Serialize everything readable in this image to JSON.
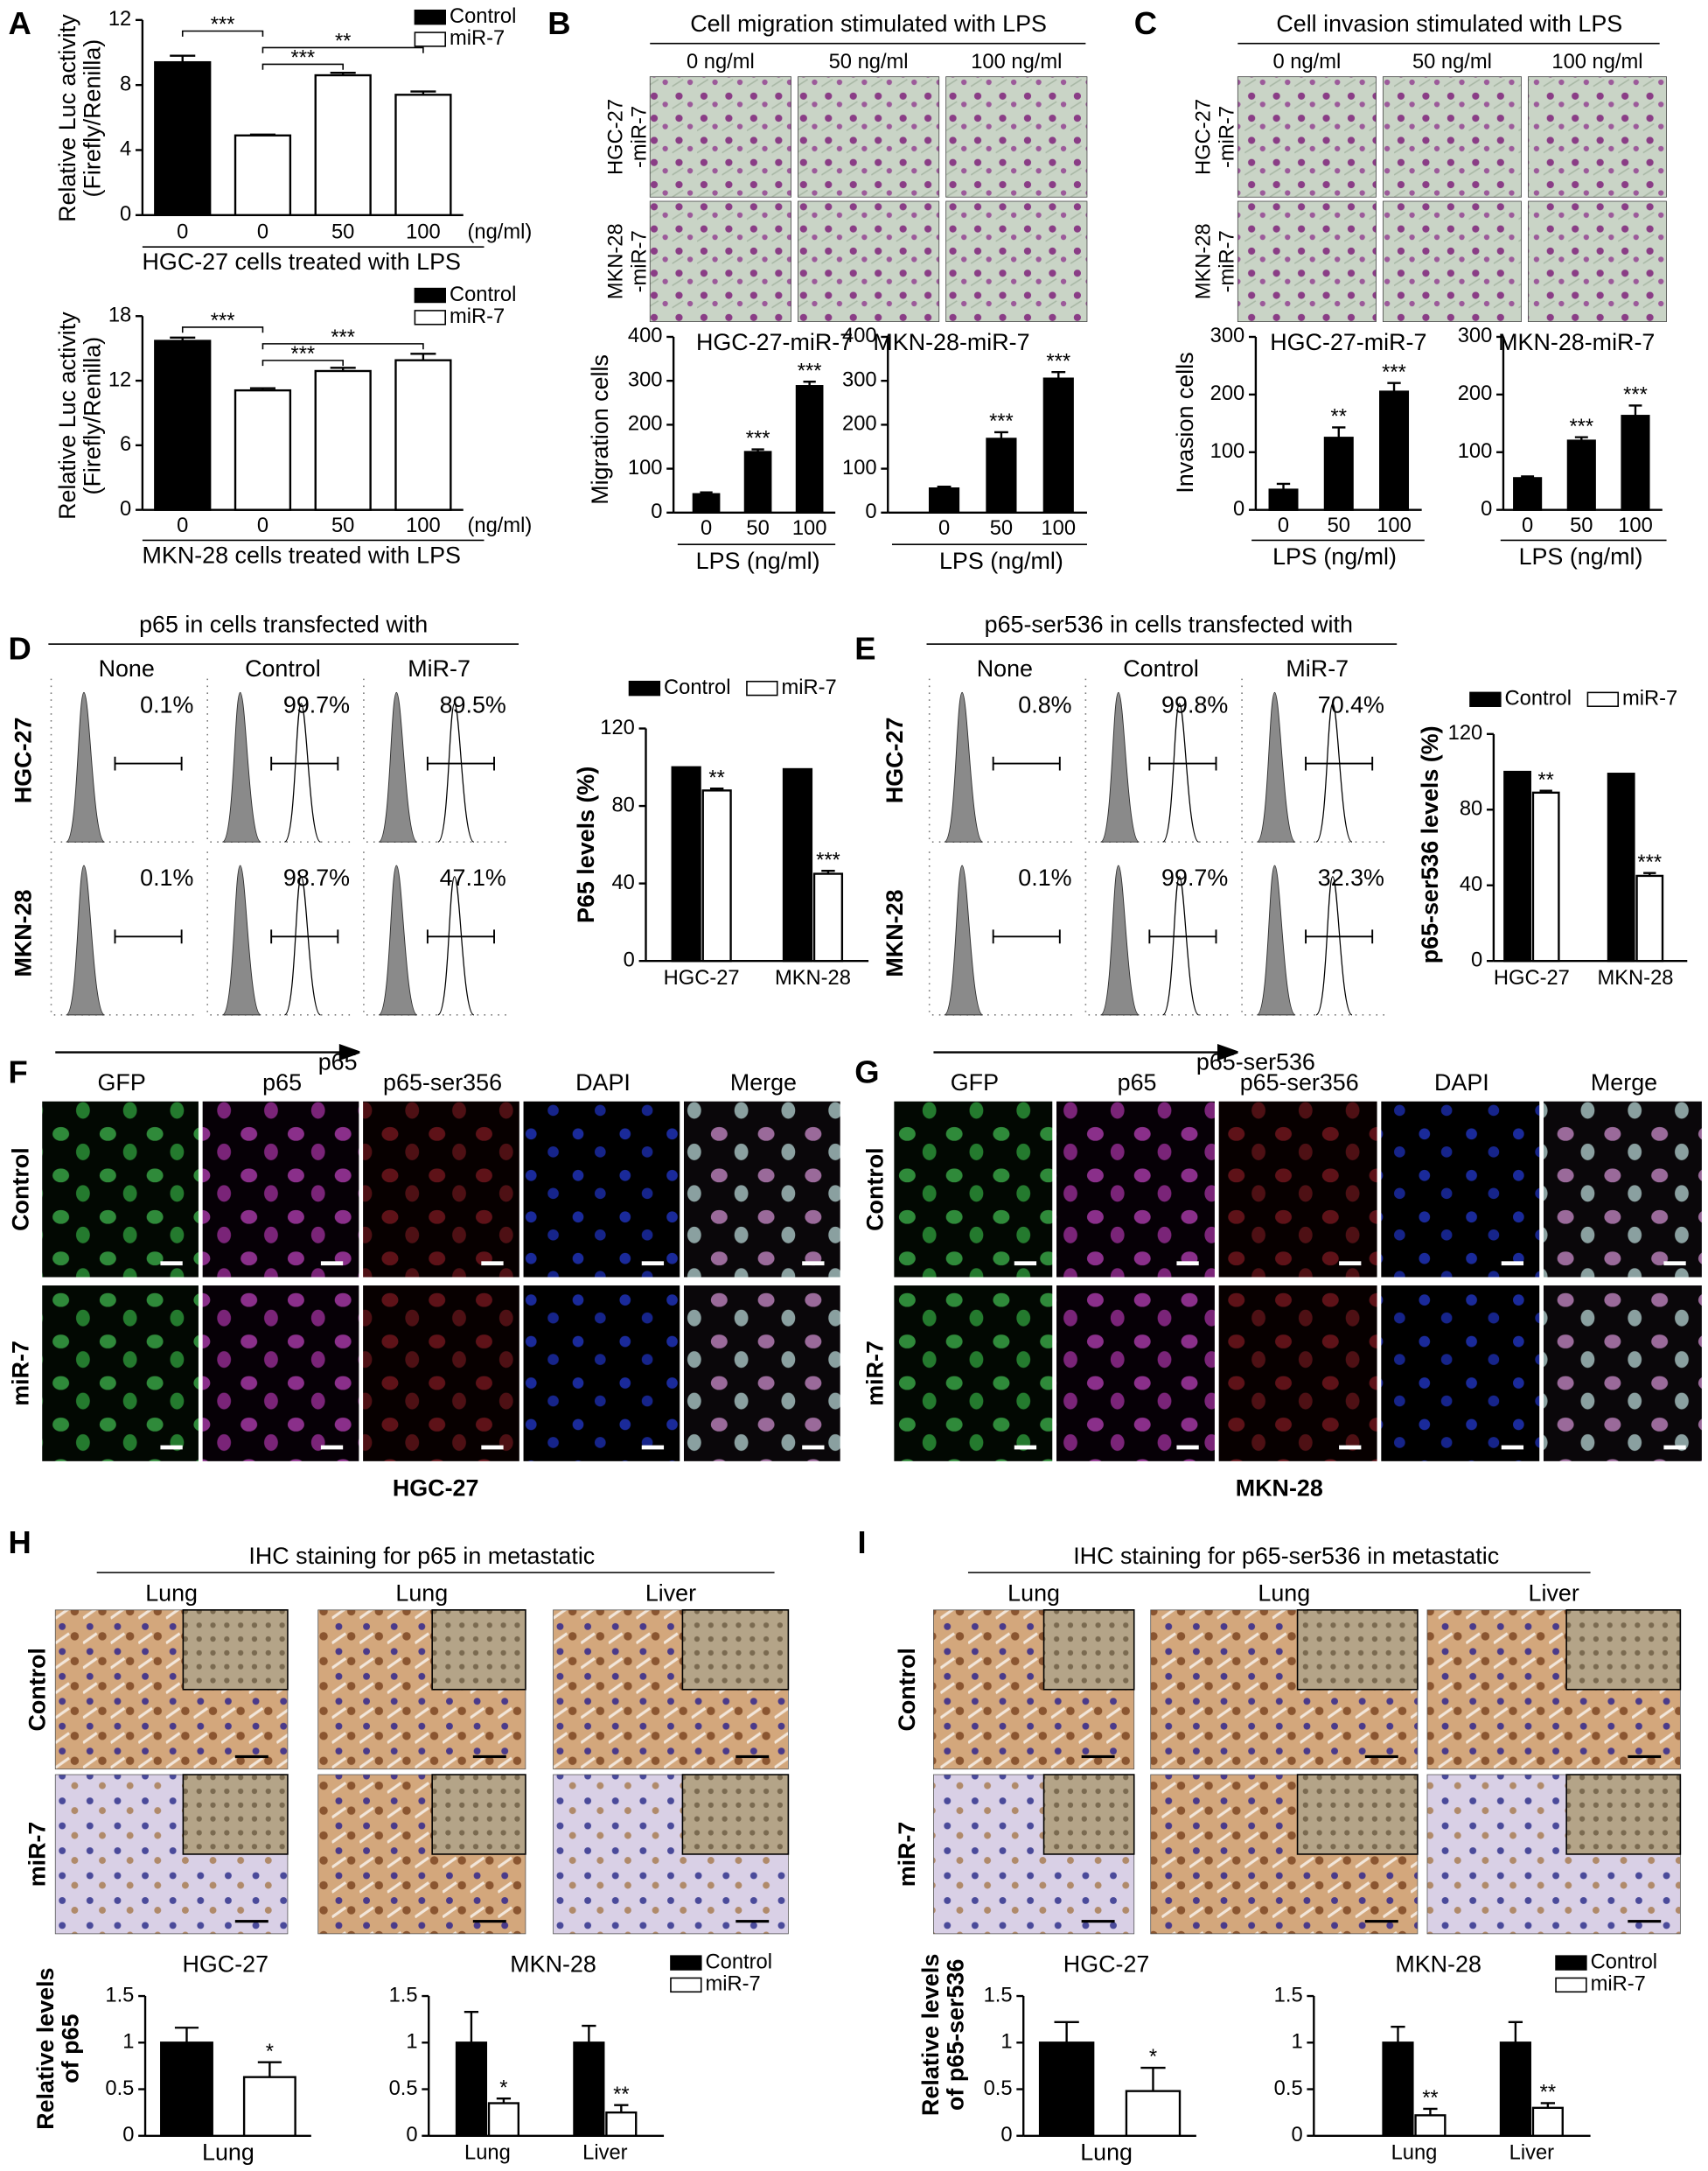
{
  "panel_labels": [
    "A",
    "B",
    "C",
    "D",
    "E",
    "F",
    "G",
    "H",
    "I"
  ],
  "migration": {
    "title": "Cell migration stimulated with LPS",
    "columns": [
      "0 ng/ml",
      "50 ng/ml",
      "100 ng/ml"
    ],
    "rows": [
      [
        "HGC-27",
        "-miR-7"
      ],
      [
        "MKN-28",
        "-miR-7"
      ]
    ]
  },
  "invasion": {
    "title": "Cell invasion stimulated with LPS",
    "columns": [
      "0 ng/ml",
      "50 ng/ml",
      "100 ng/ml"
    ],
    "rows": [
      [
        "HGC-27",
        "-miR-7"
      ],
      [
        "MKN-28",
        "-miR-7"
      ]
    ]
  },
  "flow_p65": {
    "title": "p65  in cells transfected with",
    "columns": [
      "None",
      "Control",
      "MiR-7"
    ],
    "rows": [
      "HGC-27",
      "MKN-28"
    ],
    "percents": [
      [
        "0.1%",
        "99.7%",
        "89.5%"
      ],
      [
        "0.1%",
        "98.7%",
        "47.1%"
      ]
    ],
    "axis_label": "p65"
  },
  "flow_ser536": {
    "title": "p65-ser536 in cells transfected with",
    "columns": [
      "None",
      "Control",
      "MiR-7"
    ],
    "rows": [
      "HGC-27",
      "MKN-28"
    ],
    "percents": [
      [
        "0.8%",
        "99.8%",
        "70.4%"
      ],
      [
        "0.1%",
        "99.7%",
        "32.3%"
      ]
    ],
    "axis_label": "p65-ser536"
  },
  "if_hgc27": {
    "columns": [
      "GFP",
      "p65",
      "p65-ser356",
      "DAPI",
      "Merge"
    ],
    "rows": [
      "Control",
      "miR-7"
    ],
    "caption": "HGC-27"
  },
  "if_mkn28": {
    "columns": [
      "GFP",
      "p65",
      "p65-ser356",
      "DAPI",
      "Merge"
    ],
    "rows": [
      "Control",
      "miR-7"
    ],
    "caption": "MKN-28"
  },
  "ihc_p65": {
    "title": "IHC staining for p65 in metastatic",
    "columns": [
      "Lung",
      "Lung",
      "Liver"
    ],
    "rows": [
      "Control",
      "miR-7"
    ]
  },
  "ihc_ser536": {
    "title": "IHC staining for p65-ser536 in metastatic",
    "columns": [
      "Lung",
      "Lung",
      "Liver"
    ],
    "rows": [
      "Control",
      "miR-7"
    ]
  },
  "chart_data": [
    {
      "type": "bar",
      "categories": [
        "0",
        "0",
        "50",
        "100"
      ],
      "x_unit": "(ng/ml)",
      "xlabel": "HGC-27 cells treated with LPS",
      "ylabel": [
        "Relative Luc activity",
        "(Firefly/Renilla)"
      ],
      "ylim": [
        0,
        12
      ],
      "yticks": [
        0,
        4,
        8,
        12
      ],
      "legend": "upper right",
      "series": [
        {
          "name": "Control",
          "color": "#000000",
          "values": [
            9.4,
            null,
            null,
            null
          ],
          "errors": [
            0.4,
            null,
            null,
            null
          ]
        },
        {
          "name": "miR-7",
          "color": "#ffffff",
          "values": [
            null,
            4.9,
            8.6,
            7.4
          ],
          "errors": [
            null,
            0.05,
            0.15,
            0.2
          ]
        }
      ],
      "brackets": [
        {
          "label": "***",
          "between": [
            0,
            1
          ]
        },
        {
          "label": "**",
          "between": [
            1,
            3
          ]
        },
        {
          "label": "***",
          "between": [
            1,
            2
          ]
        }
      ]
    },
    {
      "type": "bar",
      "categories": [
        "0",
        "0",
        "50",
        "100"
      ],
      "x_unit": "(ng/ml)",
      "xlabel": "MKN-28 cells treated with LPS",
      "ylabel": [
        "Relative Luc activity",
        "(Firefly/Renilla)"
      ],
      "ylim": [
        0,
        18
      ],
      "yticks": [
        0,
        6,
        12,
        18
      ],
      "legend": "upper right",
      "series": [
        {
          "name": "Control",
          "color": "#000000",
          "values": [
            15.7,
            null,
            null,
            null
          ],
          "errors": [
            0.3,
            null,
            null,
            null
          ]
        },
        {
          "name": "miR-7",
          "color": "#ffffff",
          "values": [
            null,
            11.1,
            12.9,
            13.9
          ],
          "errors": [
            null,
            0.2,
            0.3,
            0.6
          ]
        }
      ],
      "brackets": [
        {
          "label": "***",
          "between": [
            0,
            1
          ]
        },
        {
          "label": "***",
          "between": [
            1,
            3
          ]
        },
        {
          "label": "***",
          "between": [
            1,
            2
          ]
        }
      ]
    },
    {
      "type": "bar",
      "title": "HGC-27-miR-7",
      "categories": [
        "0",
        "50",
        "100"
      ],
      "xlabel": "LPS (ng/ml)",
      "ylabel": "Migration cells",
      "ylim": [
        0,
        400
      ],
      "yticks": [
        0,
        100,
        200,
        300,
        400
      ],
      "color": "#000000",
      "values": [
        42,
        138,
        288
      ],
      "errors": [
        4,
        6,
        10
      ],
      "significance": [
        null,
        "***",
        "***"
      ]
    },
    {
      "type": "bar",
      "title": "MKN-28-miR-7",
      "categories": [
        "0",
        "50",
        "100"
      ],
      "xlabel": "LPS (ng/ml)",
      "ylim": [
        0,
        400
      ],
      "yticks": [
        0,
        100,
        200,
        300,
        400
      ],
      "color": "#000000",
      "values": [
        55,
        168,
        305
      ],
      "errors": [
        4,
        15,
        15
      ],
      "significance": [
        null,
        "***",
        "***"
      ]
    },
    {
      "type": "bar",
      "title": "HGC-27-miR-7",
      "categories": [
        "0",
        "50",
        "100"
      ],
      "xlabel": "LPS (ng/ml)",
      "ylabel": "Invasion cells",
      "ylim": [
        0,
        300
      ],
      "yticks": [
        0,
        100,
        200,
        300
      ],
      "color": "#000000",
      "values": [
        35,
        125,
        205
      ],
      "errors": [
        10,
        18,
        15
      ],
      "significance": [
        null,
        "**",
        "***"
      ]
    },
    {
      "type": "bar",
      "title": "MKN-28-miR-7",
      "categories": [
        "0",
        "50",
        "100"
      ],
      "xlabel": "LPS (ng/ml)",
      "ylim": [
        0,
        300
      ],
      "yticks": [
        0,
        100,
        200,
        300
      ],
      "color": "#000000",
      "values": [
        55,
        120,
        163
      ],
      "errors": [
        3,
        6,
        18
      ],
      "significance": [
        null,
        "***",
        "***"
      ]
    },
    {
      "type": "bar",
      "categories": [
        "HGC-27",
        "MKN-28"
      ],
      "ylabel": "P65 levels (%)",
      "ylim": [
        0,
        120
      ],
      "yticks": [
        0,
        40,
        80,
        120
      ],
      "legend": "top",
      "series": [
        {
          "name": "Control",
          "color": "#000000",
          "values": [
            100,
            99
          ]
        },
        {
          "name": "miR-7",
          "color": "#ffffff",
          "values": [
            88,
            45
          ],
          "errors": [
            1,
            1.5
          ],
          "significance": [
            "**",
            "***"
          ]
        }
      ]
    },
    {
      "type": "bar",
      "categories": [
        "HGC-27",
        "MKN-28"
      ],
      "ylabel": "p65-ser536 levels (%)",
      "ylim": [
        0,
        120
      ],
      "yticks": [
        0,
        40,
        80,
        120
      ],
      "legend": "top",
      "series": [
        {
          "name": "Control",
          "color": "#000000",
          "values": [
            100,
            99
          ]
        },
        {
          "name": "miR-7",
          "color": "#ffffff",
          "values": [
            89,
            45
          ],
          "errors": [
            1,
            1.5
          ],
          "significance": [
            "**",
            "***"
          ]
        }
      ]
    },
    {
      "type": "bar",
      "title": "HGC-27",
      "xlabel": "Lung",
      "ylabel": [
        "Relative levels",
        "of p65"
      ],
      "ylim": [
        0,
        1.5
      ],
      "yticks": [
        0,
        0.5,
        1,
        1.5
      ],
      "values": [
        1.0,
        0.63
      ],
      "errors": [
        0.16,
        0.16
      ],
      "colors": [
        "#000000",
        "#ffffff"
      ],
      "significance": [
        null,
        "*"
      ]
    },
    {
      "type": "bar",
      "title": "MKN-28",
      "categories": [
        "Lung",
        "Liver"
      ],
      "ylim": [
        0,
        1.5
      ],
      "yticks": [
        0,
        0.5,
        1,
        1.5
      ],
      "legend": "upper right",
      "series": [
        {
          "name": "Control",
          "color": "#000000",
          "values": [
            1.0,
            1.0
          ],
          "errors": [
            0.33,
            0.18
          ]
        },
        {
          "name": "miR-7",
          "color": "#ffffff",
          "values": [
            0.35,
            0.25
          ],
          "errors": [
            0.05,
            0.08
          ],
          "significance": [
            "*",
            "**"
          ]
        }
      ]
    },
    {
      "type": "bar",
      "title": "HGC-27",
      "xlabel": "Lung",
      "ylabel": [
        "Relative levels",
        "of p65-ser536"
      ],
      "ylim": [
        0,
        1.5
      ],
      "yticks": [
        0,
        0.5,
        1,
        1.5
      ],
      "values": [
        1.0,
        0.48
      ],
      "errors": [
        0.22,
        0.25
      ],
      "colors": [
        "#000000",
        "#ffffff"
      ],
      "significance": [
        null,
        "*"
      ]
    },
    {
      "type": "bar",
      "title": "MKN-28",
      "categories": [
        "Lung",
        "Liver"
      ],
      "ylim": [
        0,
        1.5
      ],
      "yticks": [
        0,
        0.5,
        1,
        1.5
      ],
      "legend": "upper right",
      "series": [
        {
          "name": "Control",
          "color": "#000000",
          "values": [
            1.0,
            1.0
          ],
          "errors": [
            0.17,
            0.22
          ]
        },
        {
          "name": "miR-7",
          "color": "#ffffff",
          "values": [
            0.22,
            0.3
          ],
          "errors": [
            0.07,
            0.05
          ],
          "significance": [
            "**",
            "**"
          ]
        }
      ]
    }
  ]
}
